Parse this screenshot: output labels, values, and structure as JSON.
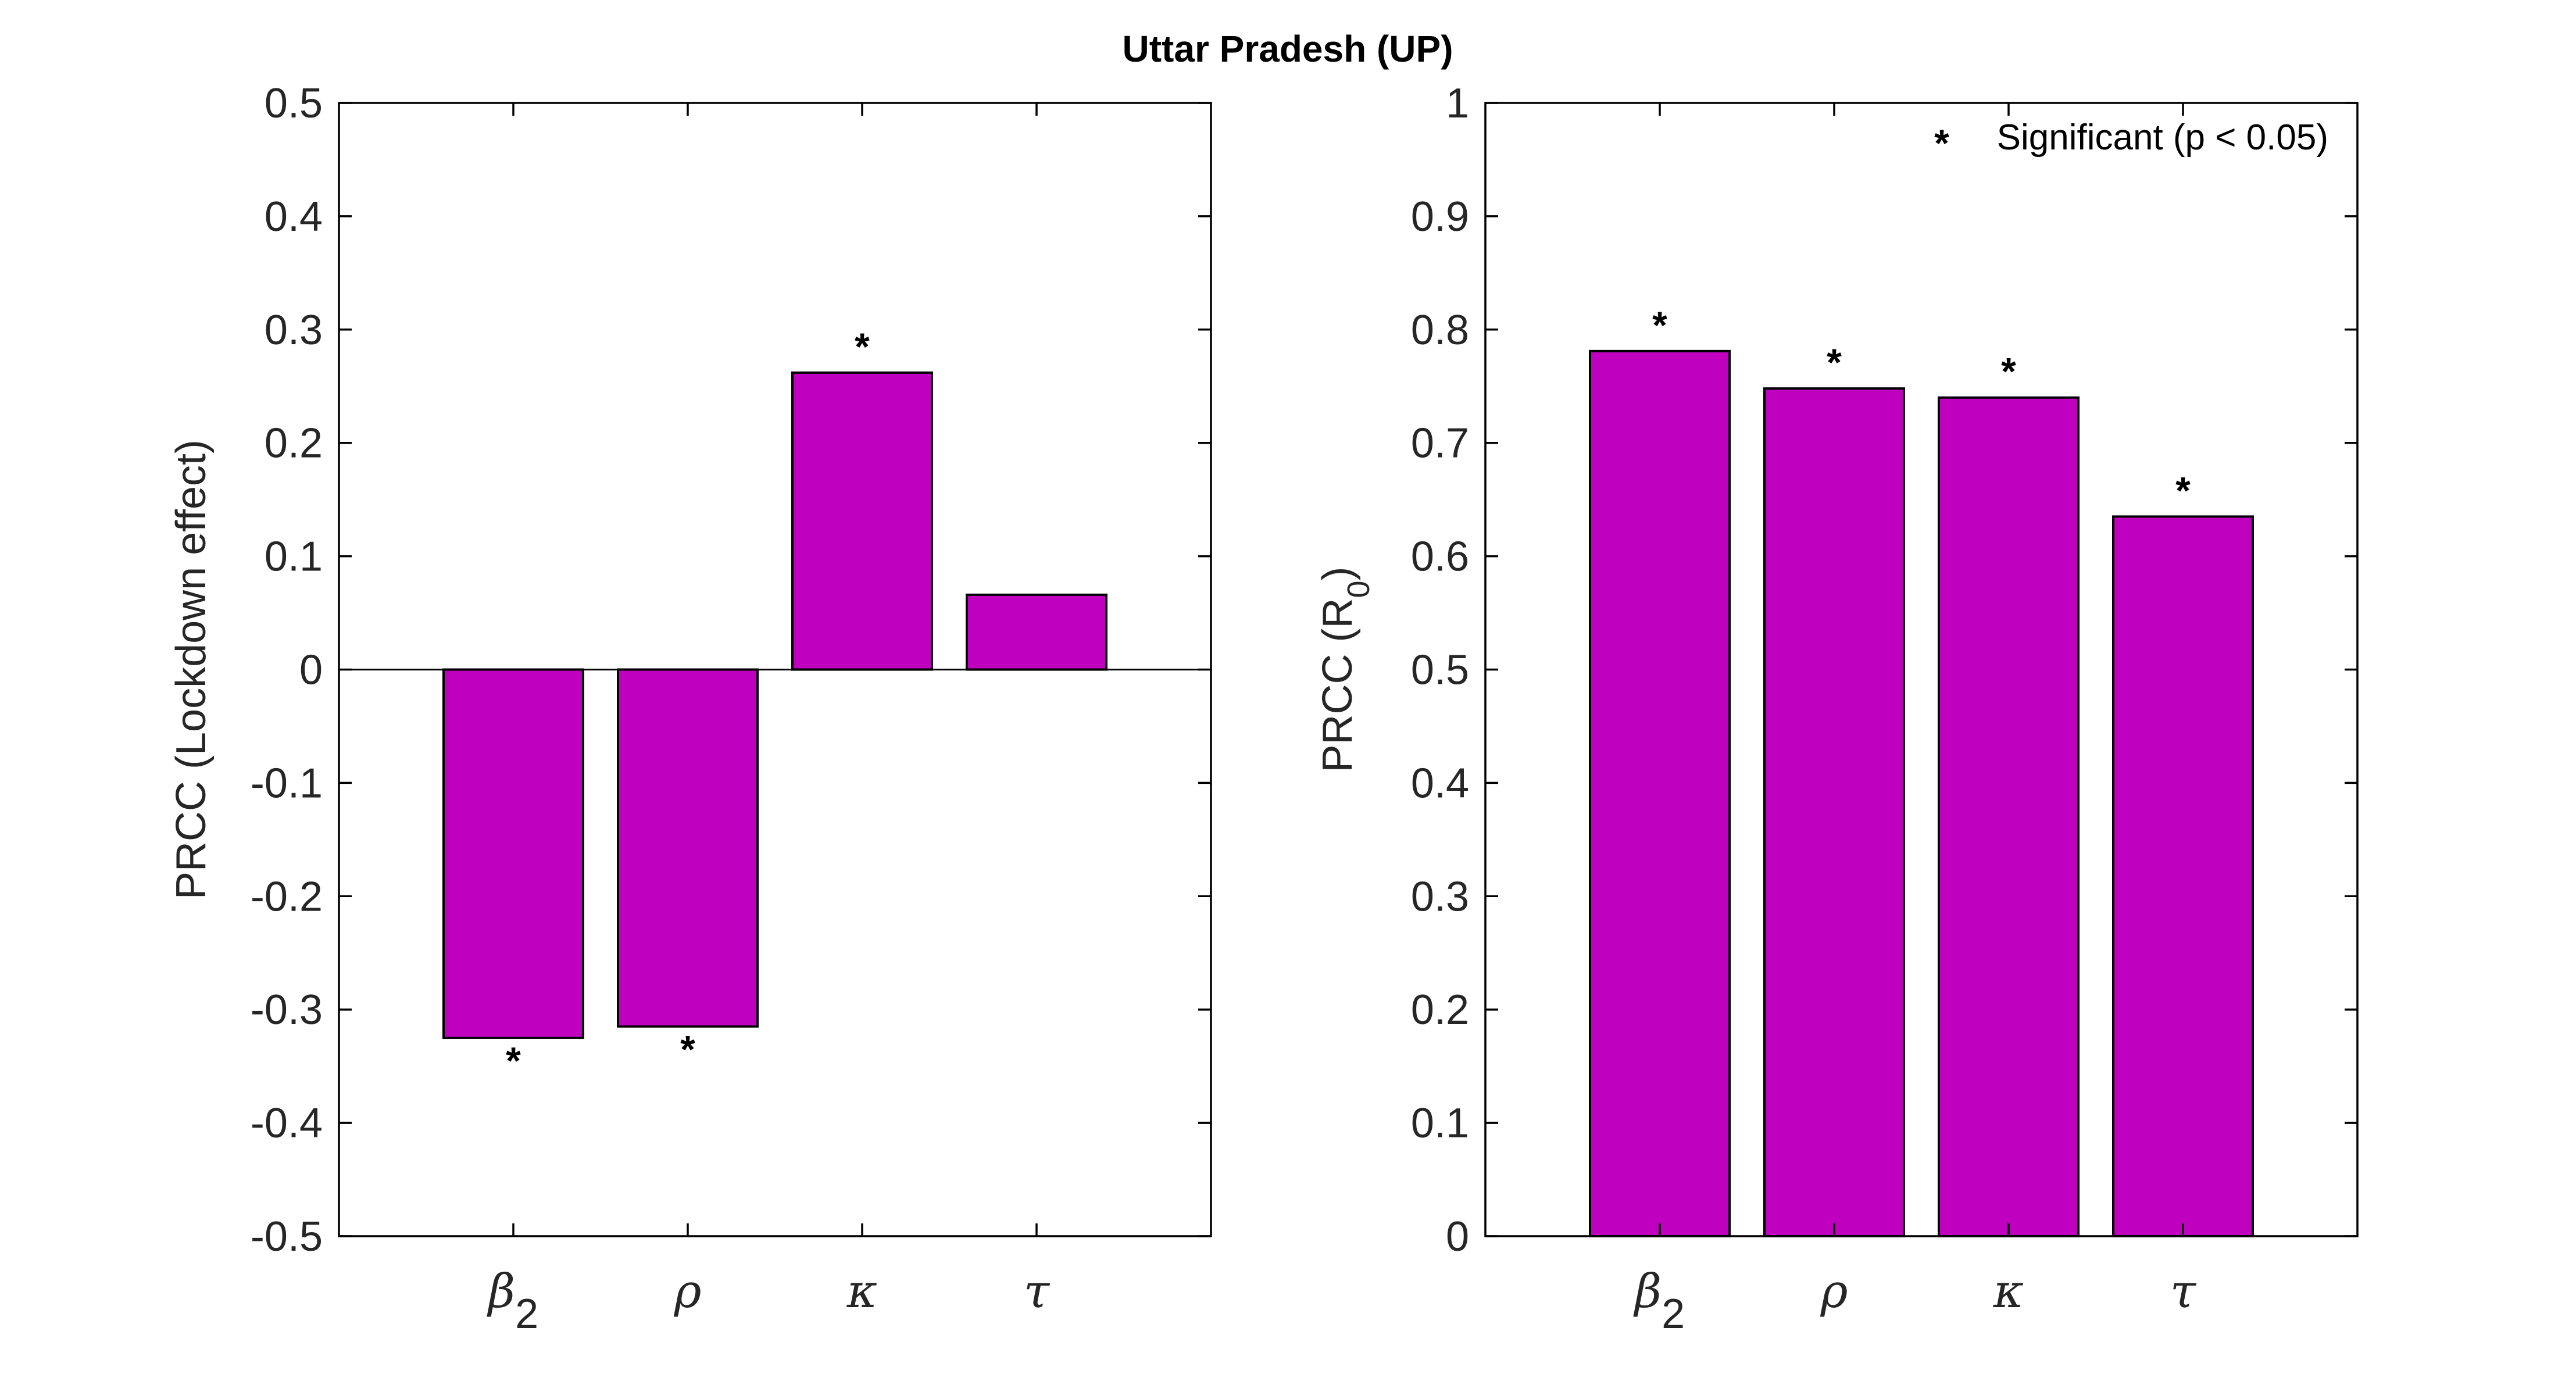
{
  "figure": {
    "title": "Uttar Pradesh (UP)",
    "bar_color": "#BF00BF",
    "legend": {
      "marker": "*",
      "label": "Significant (p < 0.05)",
      "placement": "top-right"
    }
  },
  "chart_data": [
    {
      "type": "bar",
      "categories": [
        {
          "sym": "β",
          "sub": "2"
        },
        {
          "sym": "ρ",
          "sub": ""
        },
        {
          "sym": "κ",
          "sub": ""
        },
        {
          "sym": "τ",
          "sub": ""
        }
      ],
      "values": [
        -0.325,
        -0.315,
        0.262,
        0.066
      ],
      "significant": [
        true,
        true,
        true,
        false
      ],
      "ylabel": "PRCC (Lockdown effect)",
      "ylim": [
        -0.5,
        0.5
      ],
      "yticks": [
        "-0.5",
        "-0.4",
        "-0.3",
        "-0.2",
        "-0.1",
        "0",
        "0.1",
        "0.2",
        "0.3",
        "0.4",
        "0.5"
      ],
      "grid": false
    },
    {
      "type": "bar",
      "categories": [
        {
          "sym": "β",
          "sub": "2"
        },
        {
          "sym": "ρ",
          "sub": ""
        },
        {
          "sym": "κ",
          "sub": ""
        },
        {
          "sym": "τ",
          "sub": ""
        }
      ],
      "values": [
        0.781,
        0.748,
        0.74,
        0.635
      ],
      "significant": [
        true,
        true,
        true,
        true
      ],
      "ylabel": {
        "main": "PRCC (R",
        "sub": "0",
        "end": ")"
      },
      "ylim": [
        0,
        1
      ],
      "yticks": [
        "0",
        "0.1",
        "0.2",
        "0.3",
        "0.4",
        "0.5",
        "0.6",
        "0.7",
        "0.8",
        "0.9",
        "1"
      ],
      "grid": false
    }
  ]
}
